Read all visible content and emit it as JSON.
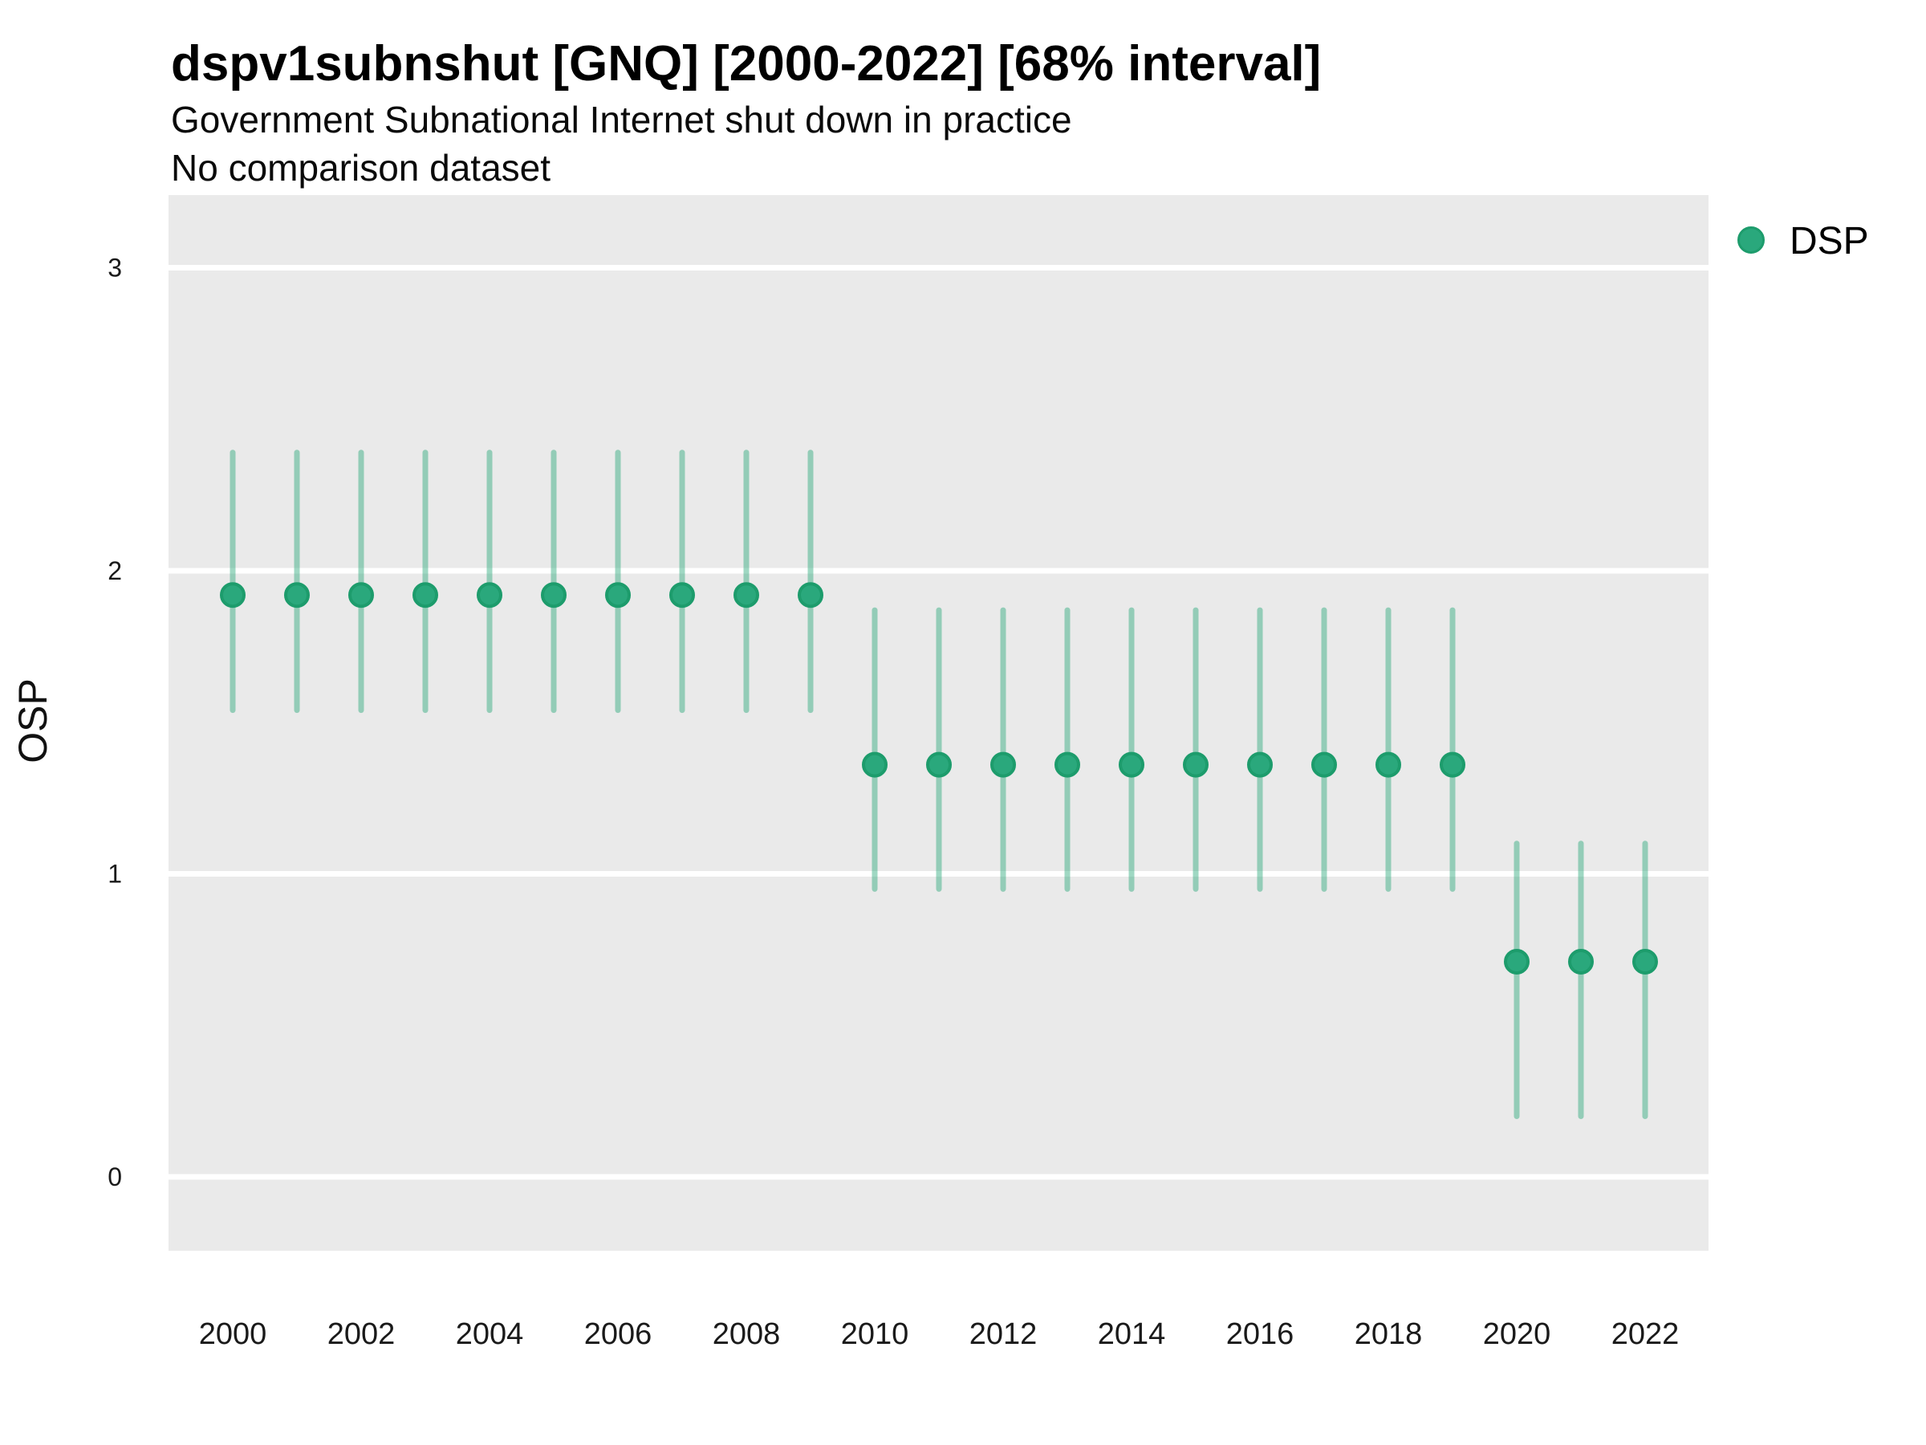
{
  "chart_data": {
    "type": "scatter",
    "title": "dspv1subnshut [GNQ] [2000-2022] [68% interval]",
    "subtitle": "Government Subnational Internet shut down in practice",
    "note": "No comparison dataset",
    "interval_label": "68% interval",
    "x": [
      2000,
      2001,
      2002,
      2003,
      2004,
      2005,
      2006,
      2007,
      2008,
      2009,
      2010,
      2011,
      2012,
      2013,
      2014,
      2015,
      2016,
      2017,
      2018,
      2019,
      2020,
      2021,
      2022
    ],
    "series": [
      {
        "name": "DSP",
        "estimate": [
          1.92,
          1.92,
          1.92,
          1.92,
          1.92,
          1.92,
          1.92,
          1.92,
          1.92,
          1.92,
          1.36,
          1.36,
          1.36,
          1.36,
          1.36,
          1.36,
          1.36,
          1.36,
          1.36,
          1.36,
          0.71,
          0.71,
          0.71
        ],
        "lower": [
          1.54,
          1.54,
          1.54,
          1.54,
          1.54,
          1.54,
          1.54,
          1.54,
          1.54,
          1.54,
          0.95,
          0.95,
          0.95,
          0.95,
          0.95,
          0.95,
          0.95,
          0.95,
          0.95,
          0.95,
          0.2,
          0.2,
          0.2
        ],
        "upper": [
          2.39,
          2.39,
          2.39,
          2.39,
          2.39,
          2.39,
          2.39,
          2.39,
          2.39,
          2.39,
          1.87,
          1.87,
          1.87,
          1.87,
          1.87,
          1.87,
          1.87,
          1.87,
          1.87,
          1.87,
          1.1,
          1.1,
          1.1
        ]
      }
    ],
    "xlabel": "",
    "ylabel": "OSP",
    "ylim": [
      -0.24,
      3.24
    ],
    "y_ticks": [
      0,
      1,
      2,
      3
    ],
    "x_ticks": [
      2000,
      2002,
      2004,
      2006,
      2008,
      2010,
      2012,
      2014,
      2016,
      2018,
      2020,
      2022
    ],
    "grid": "major-y",
    "legend_position": "right-top",
    "legend": [
      {
        "label": "DSP"
      }
    ],
    "panel_bg": "#eaeaea",
    "gridline_color": "#ffffff",
    "point_color": "#2aa87c",
    "point_border_color": "#1d9c6c",
    "interval_color": "rgba(42,168,123,0.45)"
  }
}
